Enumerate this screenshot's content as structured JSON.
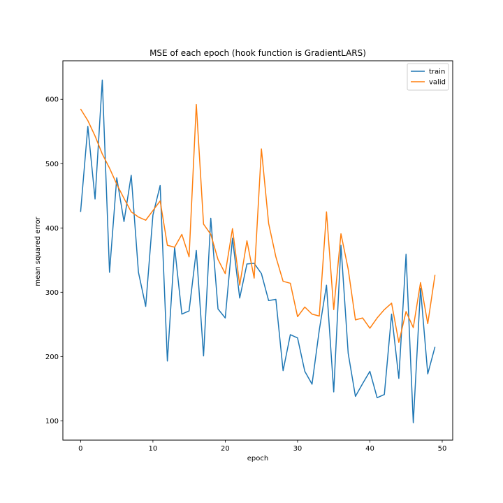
{
  "chart_data": {
    "type": "line",
    "title": "MSE of each epoch (hook function is GradientLARS)",
    "xlabel": "epoch",
    "ylabel": "mean squared error",
    "xlim": [
      -2.45,
      51.45
    ],
    "ylim": [
      70,
      660
    ],
    "xticks": [
      0,
      10,
      20,
      30,
      40,
      50
    ],
    "yticks": [
      100,
      200,
      300,
      400,
      500,
      600
    ],
    "grid": false,
    "legend": "top-right",
    "x": [
      0,
      1,
      2,
      3,
      4,
      5,
      6,
      7,
      8,
      9,
      10,
      11,
      12,
      13,
      14,
      15,
      16,
      17,
      18,
      19,
      20,
      21,
      22,
      23,
      24,
      25,
      26,
      27,
      28,
      29,
      30,
      31,
      32,
      33,
      34,
      35,
      36,
      37,
      38,
      39,
      40,
      41,
      42,
      43,
      44,
      45,
      46,
      47,
      48,
      49
    ],
    "series": [
      {
        "name": "train",
        "color": "#1f77b4",
        "values": [
          425,
          558,
          445,
          630,
          331,
          478,
          410,
          482,
          331,
          278,
          420,
          466,
          193,
          370,
          266,
          271,
          365,
          201,
          415,
          274,
          260,
          384,
          291,
          344,
          345,
          329,
          287,
          289,
          178,
          234,
          229,
          177,
          157,
          241,
          311,
          145,
          373,
          205,
          138,
          158,
          177,
          136,
          141,
          266,
          166,
          359,
          97,
          306,
          173,
          215
        ]
      },
      {
        "name": "valid",
        "color": "#ff7f0e",
        "values": [
          585,
          567,
          543,
          515,
          493,
          468,
          446,
          425,
          417,
          412,
          427,
          442,
          373,
          370,
          390,
          355,
          592,
          406,
          390,
          351,
          329,
          399,
          311,
          380,
          322,
          523,
          407,
          355,
          317,
          314,
          262,
          277,
          266,
          263,
          425,
          273,
          391,
          336,
          257,
          260,
          244,
          260,
          273,
          283,
          222,
          270,
          245,
          315,
          251,
          327
        ]
      }
    ]
  }
}
